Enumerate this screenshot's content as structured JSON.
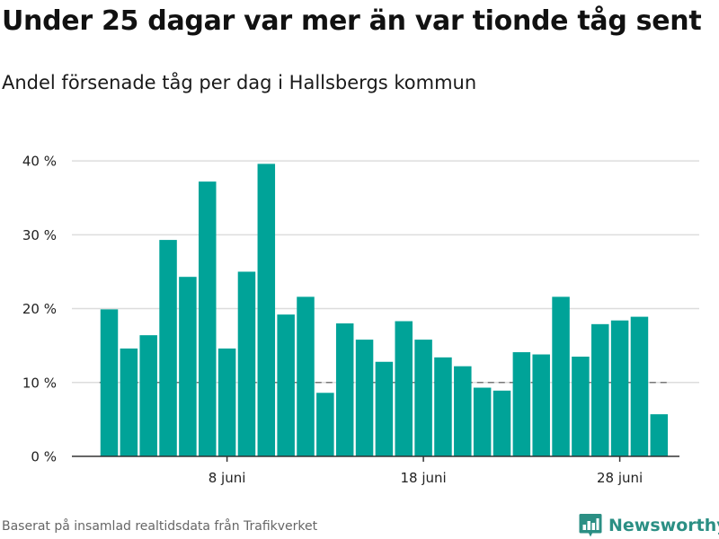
{
  "header": {
    "title": "Under 25 dagar var mer än var tionde tåg sent",
    "subtitle": "Andel försenade tåg per dag i Hallsbergs kommun"
  },
  "footer": {
    "source": "Baserat på insamlad realtidsdata från Trafikverket",
    "brand": "Newsworthy"
  },
  "colors": {
    "bar": "#00a398",
    "reference_line": "#777777",
    "grid": "#dddddd",
    "axis": "#333333",
    "brand": "#2b8f84"
  },
  "icons": {
    "brand_logo": "bar-chart-icon"
  },
  "chart_data": {
    "type": "bar",
    "x": [
      "2 juni",
      "3 juni",
      "4 juni",
      "5 juni",
      "6 juni",
      "7 juni",
      "8 juni",
      "9 juni",
      "10 juni",
      "11 juni",
      "12 juni",
      "13 juni",
      "14 juni",
      "15 juni",
      "16 juni",
      "17 juni",
      "18 juni",
      "19 juni",
      "20 juni",
      "21 juni",
      "22 juni",
      "23 juni",
      "24 juni",
      "25 juni",
      "26 juni",
      "27 juni",
      "28 juni",
      "29 juni",
      "30 juni"
    ],
    "values": [
      19.9,
      14.6,
      16.4,
      29.3,
      24.3,
      37.2,
      14.6,
      25.0,
      39.6,
      19.2,
      21.6,
      8.6,
      18.0,
      15.8,
      12.8,
      18.3,
      15.8,
      13.4,
      12.2,
      9.3,
      8.9,
      14.1,
      13.8,
      21.6,
      13.5,
      17.9,
      18.4,
      18.9,
      5.7
    ],
    "xticks": [
      "8 juni",
      "18 juni",
      "28 juni"
    ],
    "yticks": [
      0,
      10,
      20,
      30,
      40
    ],
    "ytick_labels": [
      "0 %",
      "10 %",
      "20 %",
      "30 %",
      "40 %"
    ],
    "ylim": [
      0,
      40.5
    ],
    "reference_line": 10,
    "grid": true
  }
}
